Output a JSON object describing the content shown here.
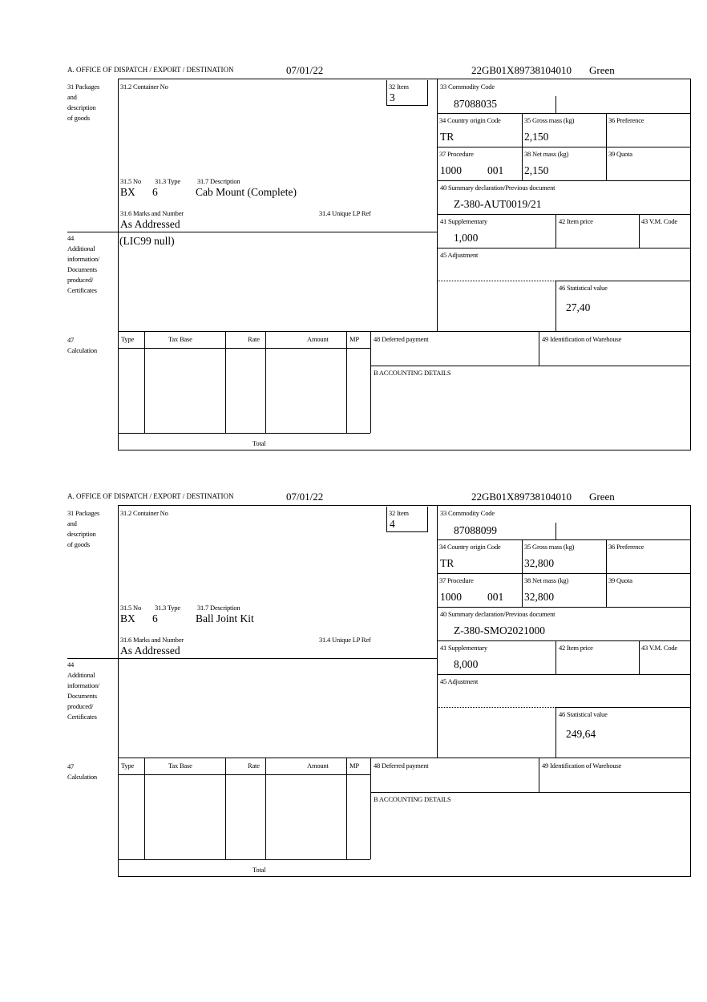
{
  "labels": {
    "office": "A.  OFFICE OF DISPATCH / EXPORT / DESTINATION",
    "box31": [
      "31 Packages",
      "and",
      "description",
      "of goods"
    ],
    "box31_2": "31.2 Container No",
    "box32": "32 Item",
    "box31_5": "31.5 No",
    "box31_3": "31.3 Type",
    "box31_7": "31.7 Description",
    "box31_6": "31.6 Marks and Number",
    "box31_4": "31.4 Unique LP Ref",
    "box33": "33 Commodity Code",
    "box34": "34 Country origin Code",
    "box35": "35 Gross mass (kg)",
    "box36": "36 Preference",
    "box37": "37 Procedure",
    "box38": "38 Net mass (kg)",
    "box39": "39 Quota",
    "box40": "40 Summary declaration/Previous document",
    "box41": "41 Supplementary",
    "box42": "42 Item price",
    "box43": "43 V.M. Code",
    "box45": "45 Adjustment",
    "box46": "46 Statistical value",
    "box44": [
      "44",
      "Additional",
      "information/",
      "Documents",
      "produced/",
      "Certificates"
    ],
    "box47": [
      "47",
      "Calculation"
    ],
    "calc_cols": [
      "Type",
      "Tax Base",
      "Rate",
      "Amount",
      "MP"
    ],
    "total": "Total",
    "box48": "48 Deferred payment",
    "box49": "49 Identification of Warehouse",
    "boxB": "B ACCOUNTING DETAILS"
  },
  "forms": [
    {
      "date": "07/01/22",
      "reference": "22GB01X89738104010",
      "route": "Green",
      "item": "3",
      "pkg_no": "BX",
      "pkg_type": "6",
      "description": "Cab Mount (Complete)",
      "marks": "As Addressed",
      "commodity_code": "87088035",
      "country_origin": "TR",
      "gross_mass": "2,150",
      "procedure": "1000",
      "procedure_add": "001",
      "net_mass": "2,150",
      "prev_document": "Z-380-AUT0019/21",
      "supplementary": "1,000",
      "statistical_value": "27,40",
      "additional_info": "(LIC99 null)"
    },
    {
      "date": "07/01/22",
      "reference": "22GB01X89738104010",
      "route": "Green",
      "item": "4",
      "pkg_no": "BX",
      "pkg_type": "6",
      "description": "Ball Joint Kit",
      "marks": "As Addressed",
      "commodity_code": "87088099",
      "country_origin": "TR",
      "gross_mass": "32,800",
      "procedure": "1000",
      "procedure_add": "001",
      "net_mass": "32,800",
      "prev_document": "Z-380-SMO2021000",
      "supplementary": "8,000",
      "statistical_value": "249,64",
      "additional_info": ""
    }
  ]
}
